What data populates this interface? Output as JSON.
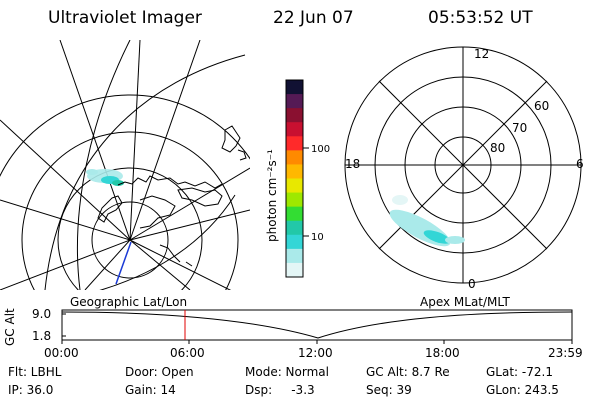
{
  "header": {
    "instrument": "Ultraviolet Imager",
    "date": "22 Jun 07",
    "time": "05:53:52 UT"
  },
  "colorbar": {
    "label": "photon cm⁻²s⁻¹",
    "ticks": [
      "100",
      "10"
    ],
    "colors": [
      "#111133",
      "#551a55",
      "#8a1030",
      "#c81030",
      "#ff2a2a",
      "#ff8a00",
      "#ffb800",
      "#e8e800",
      "#9ee800",
      "#33dd33",
      "#22c8a8",
      "#33d6d6",
      "#aaeaea",
      "#e4f6f6"
    ]
  },
  "geographic_panel": {
    "label": "Geographic Lat/Lon"
  },
  "apex_panel": {
    "label": "Apex MLat/MLT",
    "mlt_labels": {
      "top": "12",
      "left": "18",
      "right": "6",
      "bottom": "0"
    },
    "lat_labels": [
      "60",
      "70",
      "80"
    ]
  },
  "altitude_plot": {
    "ylabel": "GC Alt",
    "y_ticks": [
      "9.0",
      "1.8"
    ],
    "x_ticks": [
      "00:00",
      "06:00",
      "12:00",
      "18:00",
      "23:59"
    ],
    "marker_time": "05:53:52"
  },
  "info": {
    "flt": "Flt: LBHL",
    "ip": "IP: 36.0",
    "door": "Door: Open",
    "gain": "Gain: 14",
    "mode": "Mode: Normal",
    "dsp": "Dsp:     -3.3",
    "gcalt": "GC Alt: 8.7 Re",
    "seq": "Seq: 39",
    "glat": "GLat: -72.1",
    "glon": "GLon: 243.5"
  },
  "colors": {
    "aurora_cyan": "#33d6d6",
    "aurora_light": "#aaeaea",
    "marker_red": "#e00000",
    "track_blue": "#1a3ad6"
  }
}
